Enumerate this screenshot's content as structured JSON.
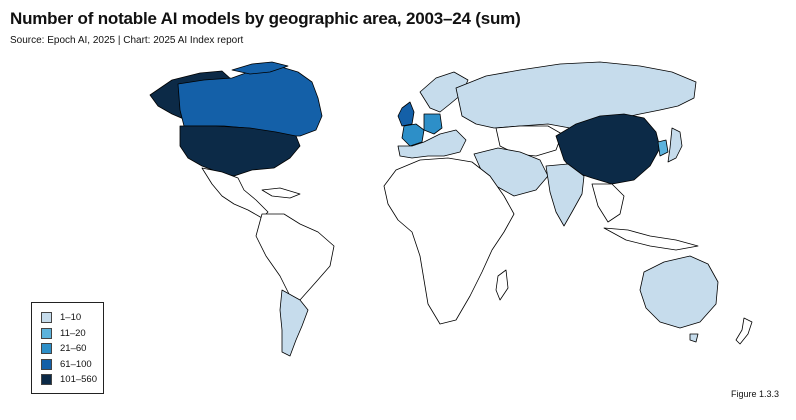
{
  "title": "Number of notable AI models by geographic area, 2003–24 (sum)",
  "source": "Source: Epoch AI, 2025 | Chart: 2025 AI Index report",
  "figure_label": "Figure 1.3.3",
  "colors": {
    "none": "#ffffff",
    "bin1": "#c6dcec",
    "bin2": "#5cb3dd",
    "bin3": "#2d8fc8",
    "bin4": "#1460a8",
    "bin5": "#0c2a47"
  },
  "legend": [
    {
      "label": "1–10",
      "bin": "bin1"
    },
    {
      "label": "11–20",
      "bin": "bin2"
    },
    {
      "label": "21–60",
      "bin": "bin3"
    },
    {
      "label": "61–100",
      "bin": "bin4"
    },
    {
      "label": "101–560",
      "bin": "bin5"
    }
  ],
  "regions": {
    "united-states": "bin5",
    "china": "bin5",
    "canada": "bin4",
    "united-kingdom": "bin4",
    "germany": "bin3",
    "france": "bin3",
    "greenland": "bin5",
    "russia": "bin1",
    "australia": "bin1",
    "india": "bin1",
    "brazil": "none",
    "argentina": "bin1",
    "mexico": "none",
    "africa": "none",
    "middle-east": "bin1",
    "scandinavia": "bin1",
    "southern-europe": "bin1",
    "south-korea": "bin2",
    "japan": "bin1",
    "southeast-asia": "none",
    "central-asia": "none"
  }
}
